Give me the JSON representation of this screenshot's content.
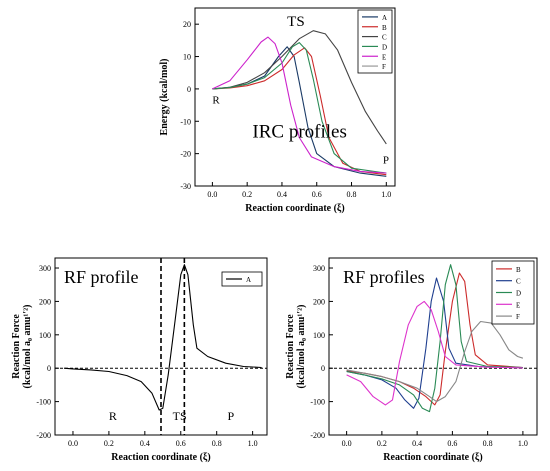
{
  "chart_data": [
    {
      "id": "top",
      "type": "line",
      "xlabel": "Reaction coordinate (ξ)",
      "ylabel": "Energy (kcal/mol)",
      "xlim": [
        -0.1,
        1.05
      ],
      "ylim": [
        -30,
        25
      ],
      "xticks": [
        0.0,
        0.2,
        0.4,
        0.6,
        0.8,
        1.0
      ],
      "xtick_labels": [
        "0.0",
        "0.2",
        "0.4",
        "0.6",
        "0.8",
        "1.0"
      ],
      "yticks": [
        -30,
        -20,
        -10,
        0,
        10,
        20
      ],
      "ytick_labels": [
        "-30",
        "-20",
        "-10",
        "0",
        "10",
        "20"
      ],
      "grid": false,
      "legend": "top-right",
      "annotations": [
        {
          "text": "TS",
          "x": 0.43,
          "y": 19.5
        },
        {
          "text": "R",
          "x": 0.0,
          "y": -4.5
        },
        {
          "text": "P",
          "x": 0.98,
          "y": -23
        },
        {
          "text": "IRC profiles",
          "x": 0.23,
          "y": -15
        }
      ],
      "series": [
        {
          "name": "A",
          "color": "#1a3a66",
          "points": [
            [
              0,
              0
            ],
            [
              0.1,
              0.5
            ],
            [
              0.2,
              1.5
            ],
            [
              0.3,
              4
            ],
            [
              0.38,
              10
            ],
            [
              0.43,
              13
            ],
            [
              0.47,
              10
            ],
            [
              0.5,
              2
            ],
            [
              0.55,
              -12
            ],
            [
              0.6,
              -20
            ],
            [
              0.7,
              -24
            ],
            [
              0.85,
              -26
            ],
            [
              1.0,
              -27
            ]
          ]
        },
        {
          "name": "B",
          "color": "#cc2b2b",
          "points": [
            [
              0,
              0
            ],
            [
              0.1,
              0.3
            ],
            [
              0.2,
              1
            ],
            [
              0.3,
              2.5
            ],
            [
              0.4,
              6
            ],
            [
              0.47,
              10.5
            ],
            [
              0.53,
              12.7
            ],
            [
              0.57,
              10
            ],
            [
              0.62,
              -2
            ],
            [
              0.67,
              -15
            ],
            [
              0.75,
              -23
            ],
            [
              0.85,
              -25.5
            ],
            [
              1.0,
              -26.5
            ]
          ]
        },
        {
          "name": "C",
          "color": "#444444",
          "points": [
            [
              0,
              0
            ],
            [
              0.1,
              0.5
            ],
            [
              0.2,
              2
            ],
            [
              0.3,
              5
            ],
            [
              0.4,
              10
            ],
            [
              0.5,
              15.5
            ],
            [
              0.58,
              18
            ],
            [
              0.65,
              17
            ],
            [
              0.72,
              12
            ],
            [
              0.8,
              2
            ],
            [
              0.88,
              -7
            ],
            [
              0.95,
              -13
            ],
            [
              1.0,
              -17
            ]
          ]
        },
        {
          "name": "D",
          "color": "#2a8a55",
          "points": [
            [
              0,
              0
            ],
            [
              0.1,
              0.4
            ],
            [
              0.2,
              1.5
            ],
            [
              0.3,
              3.5
            ],
            [
              0.4,
              8
            ],
            [
              0.46,
              13
            ],
            [
              0.5,
              14.3
            ],
            [
              0.54,
              12
            ],
            [
              0.58,
              3
            ],
            [
              0.63,
              -10
            ],
            [
              0.7,
              -20
            ],
            [
              0.8,
              -24.5
            ],
            [
              1.0,
              -26
            ]
          ]
        },
        {
          "name": "E",
          "color": "#cc22cc",
          "points": [
            [
              0,
              0
            ],
            [
              0.1,
              2.5
            ],
            [
              0.2,
              9
            ],
            [
              0.28,
              14.5
            ],
            [
              0.32,
              16
            ],
            [
              0.36,
              14
            ],
            [
              0.4,
              8
            ],
            [
              0.45,
              -5
            ],
            [
              0.5,
              -15
            ],
            [
              0.57,
              -21
            ],
            [
              0.7,
              -24
            ],
            [
              0.85,
              -25.5
            ],
            [
              1.0,
              -26
            ]
          ]
        },
        {
          "name": "F",
          "color": "#999999",
          "points": []
        }
      ]
    },
    {
      "id": "bottom-left",
      "type": "line",
      "xlabel": "Reaction coordinate (ξ)",
      "ylabel": "Reaction Force",
      "ylabel2": "(kcal/mol a₀ amu¹′²)",
      "xlim": [
        -0.1,
        1.08
      ],
      "ylim": [
        -200,
        330
      ],
      "xticks": [
        0.0,
        0.2,
        0.4,
        0.6,
        0.8,
        1.0
      ],
      "xtick_labels": [
        "0.0",
        "0.2",
        "0.4",
        "0.6",
        "0.8",
        "1.0"
      ],
      "yticks": [
        -200,
        -100,
        0,
        100,
        200,
        300
      ],
      "ytick_labels": [
        "-200",
        "-100",
        "0",
        "100",
        "200",
        "300"
      ],
      "grid": false,
      "legend": "top-right",
      "vlines": [
        0.49,
        0.62
      ],
      "hline": 0,
      "annotations": [
        {
          "text": "RF profile",
          "x": -0.05,
          "y": 255
        },
        {
          "text": "R",
          "x": 0.2,
          "y": -155
        },
        {
          "text": "TS",
          "x": 0.555,
          "y": -155
        },
        {
          "text": "P",
          "x": 0.86,
          "y": -155
        }
      ],
      "series": [
        {
          "name": "A",
          "color": "#000000",
          "points": [
            [
              -0.05,
              0
            ],
            [
              0.0,
              -2
            ],
            [
              0.1,
              -5
            ],
            [
              0.2,
              -10
            ],
            [
              0.3,
              -22
            ],
            [
              0.38,
              -40
            ],
            [
              0.44,
              -75
            ],
            [
              0.48,
              -125
            ],
            [
              0.5,
              -120
            ],
            [
              0.53,
              -20
            ],
            [
              0.57,
              150
            ],
            [
              0.6,
              280
            ],
            [
              0.62,
              310
            ],
            [
              0.64,
              280
            ],
            [
              0.67,
              130
            ],
            [
              0.69,
              60
            ],
            [
              0.75,
              35
            ],
            [
              0.85,
              15
            ],
            [
              0.95,
              5
            ],
            [
              1.05,
              2
            ]
          ]
        }
      ]
    },
    {
      "id": "bottom-right",
      "type": "line",
      "xlabel": "Reaction coordinate (ξ)",
      "ylabel": "Reaction Force",
      "ylabel2": "(kcal/mol a₀ amu¹′²)",
      "xlim": [
        -0.1,
        1.08
      ],
      "ylim": [
        -200,
        330
      ],
      "xticks": [
        0.0,
        0.2,
        0.4,
        0.6,
        0.8,
        1.0
      ],
      "xtick_labels": [
        "0.0",
        "0.2",
        "0.4",
        "0.6",
        "0.8",
        "1.0"
      ],
      "yticks": [
        -200,
        -100,
        0,
        100,
        200,
        300
      ],
      "ytick_labels": [
        "-200",
        "-100",
        "0",
        "100",
        "200",
        "300"
      ],
      "grid": false,
      "legend": "top-right",
      "hline": 0,
      "annotations": [
        {
          "text": "RF profiles",
          "x": -0.02,
          "y": 255
        }
      ],
      "series": [
        {
          "name": "B",
          "color": "#cc2b2b",
          "points": [
            [
              0,
              -8
            ],
            [
              0.1,
              -15
            ],
            [
              0.2,
              -25
            ],
            [
              0.3,
              -40
            ],
            [
              0.38,
              -60
            ],
            [
              0.45,
              -85
            ],
            [
              0.5,
              -110
            ],
            [
              0.53,
              -80
            ],
            [
              0.56,
              50
            ],
            [
              0.6,
              200
            ],
            [
              0.64,
              285
            ],
            [
              0.67,
              260
            ],
            [
              0.7,
              130
            ],
            [
              0.73,
              40
            ],
            [
              0.8,
              10
            ],
            [
              1.0,
              2
            ]
          ]
        },
        {
          "name": "C",
          "color": "#1f3f8f",
          "points": [
            [
              0,
              -10
            ],
            [
              0.1,
              -20
            ],
            [
              0.2,
              -35
            ],
            [
              0.28,
              -60
            ],
            [
              0.33,
              -95
            ],
            [
              0.38,
              -120
            ],
            [
              0.41,
              -90
            ],
            [
              0.45,
              60
            ],
            [
              0.48,
              200
            ],
            [
              0.51,
              270
            ],
            [
              0.55,
              200
            ],
            [
              0.58,
              60
            ],
            [
              0.62,
              15
            ],
            [
              0.75,
              5
            ],
            [
              1.0,
              2
            ]
          ]
        },
        {
          "name": "D",
          "color": "#2a8a55",
          "points": [
            [
              0,
              -10
            ],
            [
              0.1,
              -20
            ],
            [
              0.2,
              -32
            ],
            [
              0.3,
              -50
            ],
            [
              0.38,
              -80
            ],
            [
              0.43,
              -120
            ],
            [
              0.47,
              -130
            ],
            [
              0.5,
              -60
            ],
            [
              0.53,
              80
            ],
            [
              0.56,
              250
            ],
            [
              0.59,
              310
            ],
            [
              0.62,
              250
            ],
            [
              0.65,
              80
            ],
            [
              0.68,
              20
            ],
            [
              0.8,
              5
            ],
            [
              1.0,
              2
            ]
          ]
        },
        {
          "name": "E",
          "color": "#dd33cc",
          "points": [
            [
              0,
              -20
            ],
            [
              0.08,
              -40
            ],
            [
              0.15,
              -85
            ],
            [
              0.22,
              -110
            ],
            [
              0.26,
              -95
            ],
            [
              0.3,
              20
            ],
            [
              0.35,
              130
            ],
            [
              0.4,
              185
            ],
            [
              0.44,
              200
            ],
            [
              0.48,
              175
            ],
            [
              0.52,
              110
            ],
            [
              0.56,
              35
            ],
            [
              0.62,
              10
            ],
            [
              0.8,
              3
            ],
            [
              1.0,
              1
            ]
          ]
        },
        {
          "name": "F",
          "color": "#888888",
          "points": [
            [
              0,
              -5
            ],
            [
              0.1,
              -15
            ],
            [
              0.2,
              -25
            ],
            [
              0.3,
              -40
            ],
            [
              0.4,
              -60
            ],
            [
              0.47,
              -85
            ],
            [
              0.51,
              -100
            ],
            [
              0.56,
              -85
            ],
            [
              0.62,
              -40
            ],
            [
              0.67,
              50
            ],
            [
              0.71,
              110
            ],
            [
              0.76,
              140
            ],
            [
              0.82,
              135
            ],
            [
              0.87,
              100
            ],
            [
              0.92,
              55
            ],
            [
              0.97,
              35
            ],
            [
              1.0,
              30
            ]
          ]
        }
      ]
    }
  ]
}
